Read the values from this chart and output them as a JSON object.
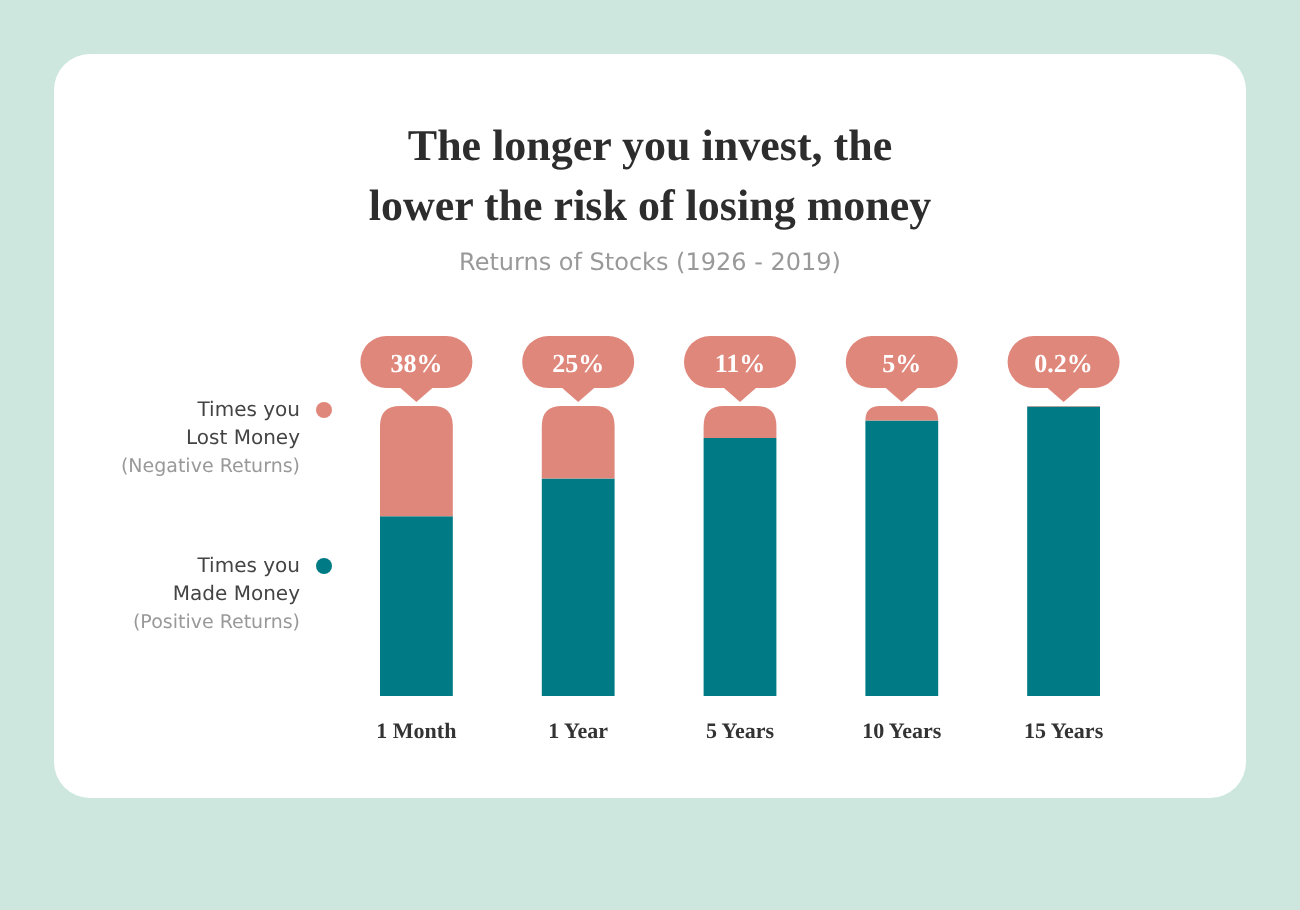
{
  "chart_data": {
    "type": "bar",
    "title": "The longer you invest, the\nlower the risk of losing money",
    "subtitle": "Returns of Stocks (1926 - 2019)",
    "categories": [
      "1 Month",
      "1 Year",
      "5 Years",
      "10 Years",
      "15 Years"
    ],
    "stacked": true,
    "legend": "left",
    "series": [
      {
        "name": "Times you\nMade Money\n(Positive Returns)",
        "color": "#007b86",
        "values": [
          62,
          75,
          89,
          95,
          99.8
        ]
      },
      {
        "name": "Times you\nLost Money\n(Negative Returns)",
        "color": "#e0877c",
        "values": [
          38,
          25,
          11,
          5,
          0.2
        ],
        "value_labels": [
          "38%",
          "25%",
          "11%",
          "5%",
          "0.2%"
        ]
      }
    ]
  }
}
